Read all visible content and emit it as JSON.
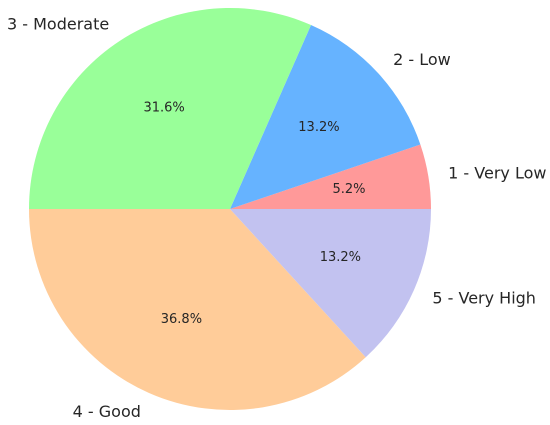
{
  "chart_data": {
    "type": "pie",
    "title": "",
    "categories": [
      "1 - Very Low",
      "2 - Low",
      "3 - Moderate",
      "4 - Good",
      "5 - Very High"
    ],
    "values": [
      5.2,
      13.2,
      31.6,
      36.8,
      13.2
    ],
    "labels": [
      "5.2%",
      "13.2%",
      "31.6%",
      "36.8%",
      "13.2%"
    ],
    "colors": [
      "#ff9999",
      "#66b3ff",
      "#99ff99",
      "#ffcc99",
      "#c2c2f0"
    ],
    "start_angle_deg": 0,
    "direction": "counterclockwise",
    "legend": "none"
  }
}
